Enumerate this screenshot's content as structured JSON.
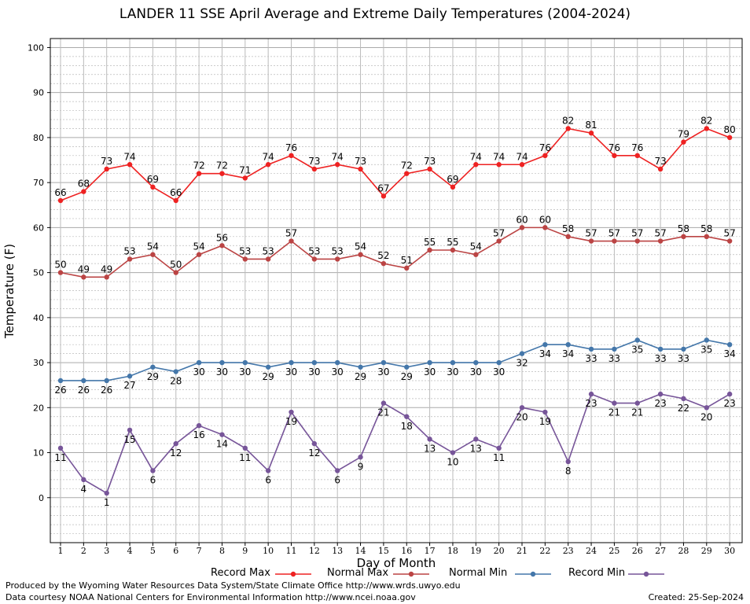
{
  "chart_data": {
    "type": "line",
    "title": "LANDER 11 SSE April Average and Extreme Daily Temperatures (2004-2024)",
    "xlabel": "Day of Month",
    "ylabel": "Temperature (F)",
    "x": [
      1,
      2,
      3,
      4,
      5,
      6,
      7,
      8,
      9,
      10,
      11,
      12,
      13,
      14,
      15,
      16,
      17,
      18,
      19,
      20,
      21,
      22,
      23,
      24,
      25,
      26,
      27,
      28,
      29,
      30
    ],
    "ylim": [
      -10,
      102
    ],
    "yticks": [
      0,
      10,
      20,
      30,
      40,
      50,
      60,
      70,
      80,
      90,
      100
    ],
    "grid": true,
    "legend_position": "bottom",
    "series": [
      {
        "name": "Record Max",
        "color": "#ee2222",
        "label_position": "above",
        "values": [
          66,
          68,
          73,
          74,
          69,
          66,
          72,
          72,
          71,
          74,
          76,
          73,
          74,
          73,
          67,
          72,
          73,
          69,
          74,
          74,
          74,
          76,
          82,
          81,
          76,
          76,
          73,
          79,
          82,
          80
        ]
      },
      {
        "name": "Normal Max",
        "color": "#bb4444",
        "label_position": "above",
        "values": [
          50,
          49,
          49,
          53,
          54,
          50,
          54,
          56,
          53,
          53,
          57,
          53,
          53,
          54,
          52,
          51,
          55,
          55,
          54,
          57,
          60,
          60,
          58,
          57,
          57,
          57,
          57,
          58,
          58,
          57
        ]
      },
      {
        "name": "Normal Min",
        "color": "#4477aa",
        "label_position": "below",
        "values": [
          26,
          26,
          26,
          27,
          29,
          28,
          30,
          30,
          30,
          29,
          30,
          30,
          30,
          29,
          30,
          29,
          30,
          30,
          30,
          30,
          32,
          34,
          34,
          33,
          33,
          35,
          33,
          33,
          35,
          34
        ]
      },
      {
        "name": "Record Min",
        "color": "#775599",
        "label_position": "below",
        "values": [
          11,
          4,
          1,
          15,
          6,
          12,
          16,
          14,
          11,
          6,
          19,
          12,
          6,
          9,
          21,
          18,
          13,
          10,
          13,
          11,
          20,
          19,
          8,
          23,
          21,
          21,
          23,
          22,
          20,
          23
        ]
      }
    ]
  },
  "footer": {
    "produced_by": "Produced by the Wyoming Water Resources Data System/State Climate Office http://www.wrds.uwyo.edu",
    "courtesy": "Data courtesy NOAA National Centers for Environmental Information http://www.ncei.noaa.gov",
    "created": "Created:  25-Sep-2024"
  }
}
